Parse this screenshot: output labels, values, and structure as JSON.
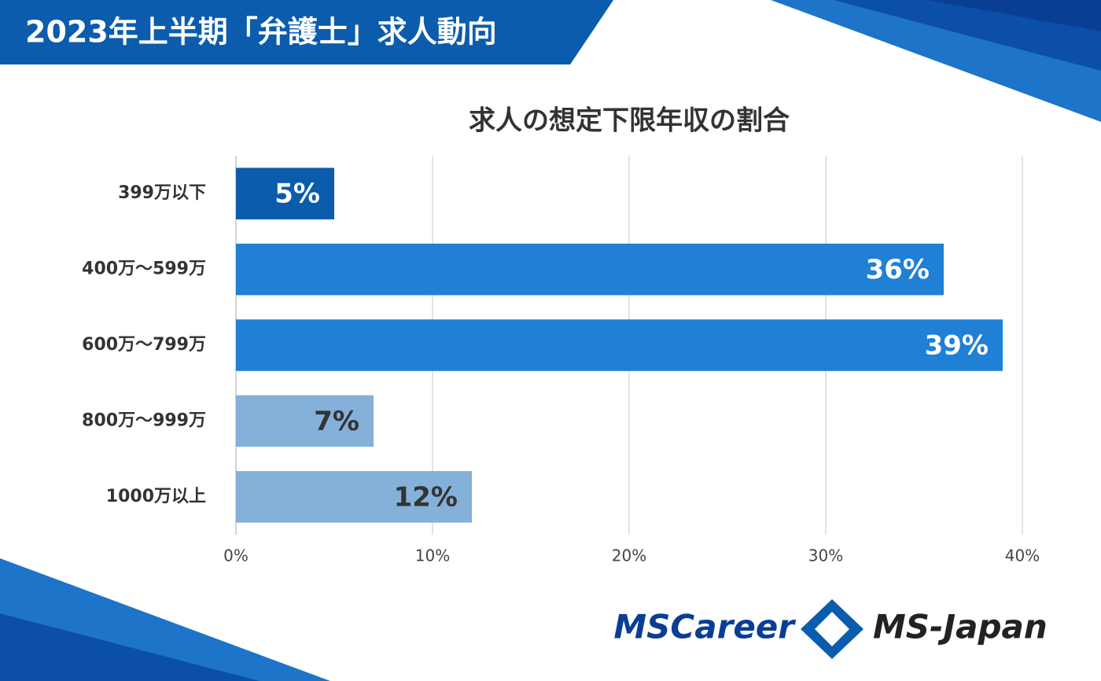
{
  "header": {
    "title": "2023年上半期「弁護士」求人動向"
  },
  "logos": [
    "MSCareer",
    "MS-Japan"
  ],
  "chart_data": {
    "type": "bar",
    "orientation": "horizontal",
    "title": "求人の想定下限年収の割合",
    "categories": [
      "399万以下",
      "400万～599万",
      "600万～799万",
      "800万～999万",
      "1000万以上"
    ],
    "values": [
      5,
      36,
      39,
      7,
      12
    ],
    "value_labels": [
      "5%",
      "36%",
      "39%",
      "7%",
      "12%"
    ],
    "colors": [
      "#0b5cad",
      "#1f80d6",
      "#1f80d6",
      "#84b0da",
      "#84b0da"
    ],
    "xlim": [
      0,
      40
    ],
    "xticks": [
      {
        "value": 0,
        "label": "0%"
      },
      {
        "value": 10,
        "label": "10%"
      },
      {
        "value": 20,
        "label": "20%"
      },
      {
        "value": 30,
        "label": "30%"
      },
      {
        "value": 40,
        "label": "40%"
      }
    ],
    "grid": true
  }
}
